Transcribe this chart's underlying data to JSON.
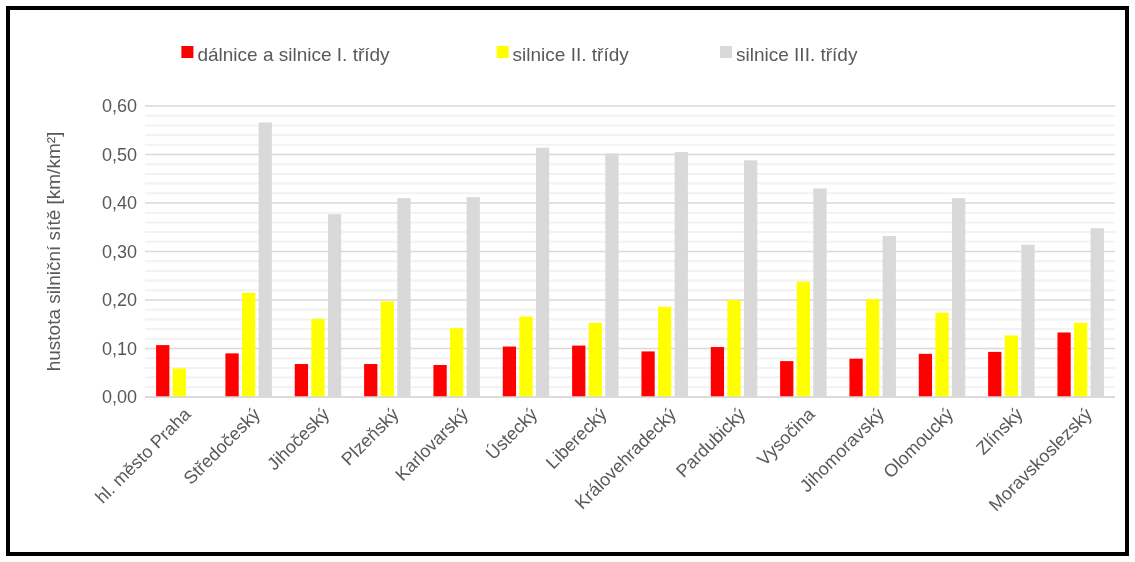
{
  "chart_data": {
    "type": "bar",
    "categories": [
      "hl. město Praha",
      "Středočeský",
      "Jihočeský",
      "Plzeňský",
      "Karlovarský",
      "Ústecký",
      "Liberecký",
      "Královehradecký",
      "Pardubický",
      "Vysočina",
      "Jihomoravský",
      "Olomoucký",
      "Zlínský",
      "Moravskoslezský"
    ],
    "series": [
      {
        "name": "dálnice a silnice I. třídy",
        "color": "#ff0000",
        "values": [
          0.107,
          0.09,
          0.068,
          0.068,
          0.066,
          0.104,
          0.106,
          0.094,
          0.103,
          0.074,
          0.079,
          0.089,
          0.093,
          0.133
        ]
      },
      {
        "name": "silnice II. třídy",
        "color": "#ffff00",
        "values": [
          0.059,
          0.215,
          0.161,
          0.197,
          0.142,
          0.166,
          0.153,
          0.186,
          0.2,
          0.238,
          0.202,
          0.174,
          0.127,
          0.153
        ]
      },
      {
        "name": "silnice III. třídy",
        "color": "#d9d9d9",
        "values": [
          null,
          0.566,
          0.377,
          0.41,
          0.412,
          0.514,
          0.502,
          0.505,
          0.488,
          0.43,
          0.332,
          0.41,
          0.314,
          0.348
        ]
      }
    ],
    "ylabel": "hustota silniční sítě [km/km²]",
    "ylim": [
      0,
      0.6
    ],
    "yticks": [
      {
        "value": 0,
        "label": "0,00"
      },
      {
        "value": 0.02,
        "label": null
      },
      {
        "value": 0.04,
        "label": null
      },
      {
        "value": 0.06,
        "label": null
      },
      {
        "value": 0.08,
        "label": null
      },
      {
        "value": 0.1,
        "label": "0,10"
      },
      {
        "value": 0.12,
        "label": null
      },
      {
        "value": 0.14,
        "label": null
      },
      {
        "value": 0.16,
        "label": null
      },
      {
        "value": 0.18,
        "label": null
      },
      {
        "value": 0.2,
        "label": "0,20"
      },
      {
        "value": 0.22,
        "label": null
      },
      {
        "value": 0.24,
        "label": null
      },
      {
        "value": 0.26,
        "label": null
      },
      {
        "value": 0.28,
        "label": null
      },
      {
        "value": 0.3,
        "label": "0,30"
      },
      {
        "value": 0.32,
        "label": null
      },
      {
        "value": 0.34,
        "label": null
      },
      {
        "value": 0.36,
        "label": null
      },
      {
        "value": 0.38,
        "label": null
      },
      {
        "value": 0.4,
        "label": "0,40"
      },
      {
        "value": 0.42,
        "label": null
      },
      {
        "value": 0.44,
        "label": null
      },
      {
        "value": 0.46,
        "label": null
      },
      {
        "value": 0.48,
        "label": null
      },
      {
        "value": 0.5,
        "label": "0,50"
      },
      {
        "value": 0.52,
        "label": null
      },
      {
        "value": 0.54,
        "label": null
      },
      {
        "value": 0.56,
        "label": null
      },
      {
        "value": 0.58,
        "label": null
      },
      {
        "value": 0.6,
        "label": "0,60"
      }
    ],
    "grid": "y",
    "legend": "top"
  }
}
